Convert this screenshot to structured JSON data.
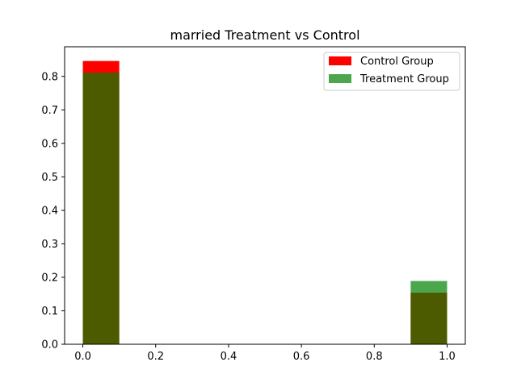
{
  "chart_data": {
    "type": "bar",
    "title": "married Treatment vs Control",
    "xlabel": "",
    "ylabel": "",
    "xlim": [
      -0.05,
      1.05
    ],
    "ylim": [
      0,
      0.8885
    ],
    "xticks": [
      "0.0",
      "0.2",
      "0.4",
      "0.6",
      "0.8",
      "1.0"
    ],
    "yticks": [
      "0.0",
      "0.1",
      "0.2",
      "0.3",
      "0.4",
      "0.5",
      "0.6",
      "0.7",
      "0.8"
    ],
    "grid": false,
    "legend_position": "top-right",
    "bins": [
      [
        0.0,
        0.1
      ],
      [
        0.9,
        1.0
      ]
    ],
    "series": [
      {
        "name": "Control Group",
        "color": "#ff0000",
        "opacity": 1.0,
        "values": [
          0.846,
          0.154
        ]
      },
      {
        "name": "Treatment Group",
        "color": "#008000",
        "opacity": 0.7,
        "values": [
          0.811,
          0.189
        ]
      }
    ]
  }
}
